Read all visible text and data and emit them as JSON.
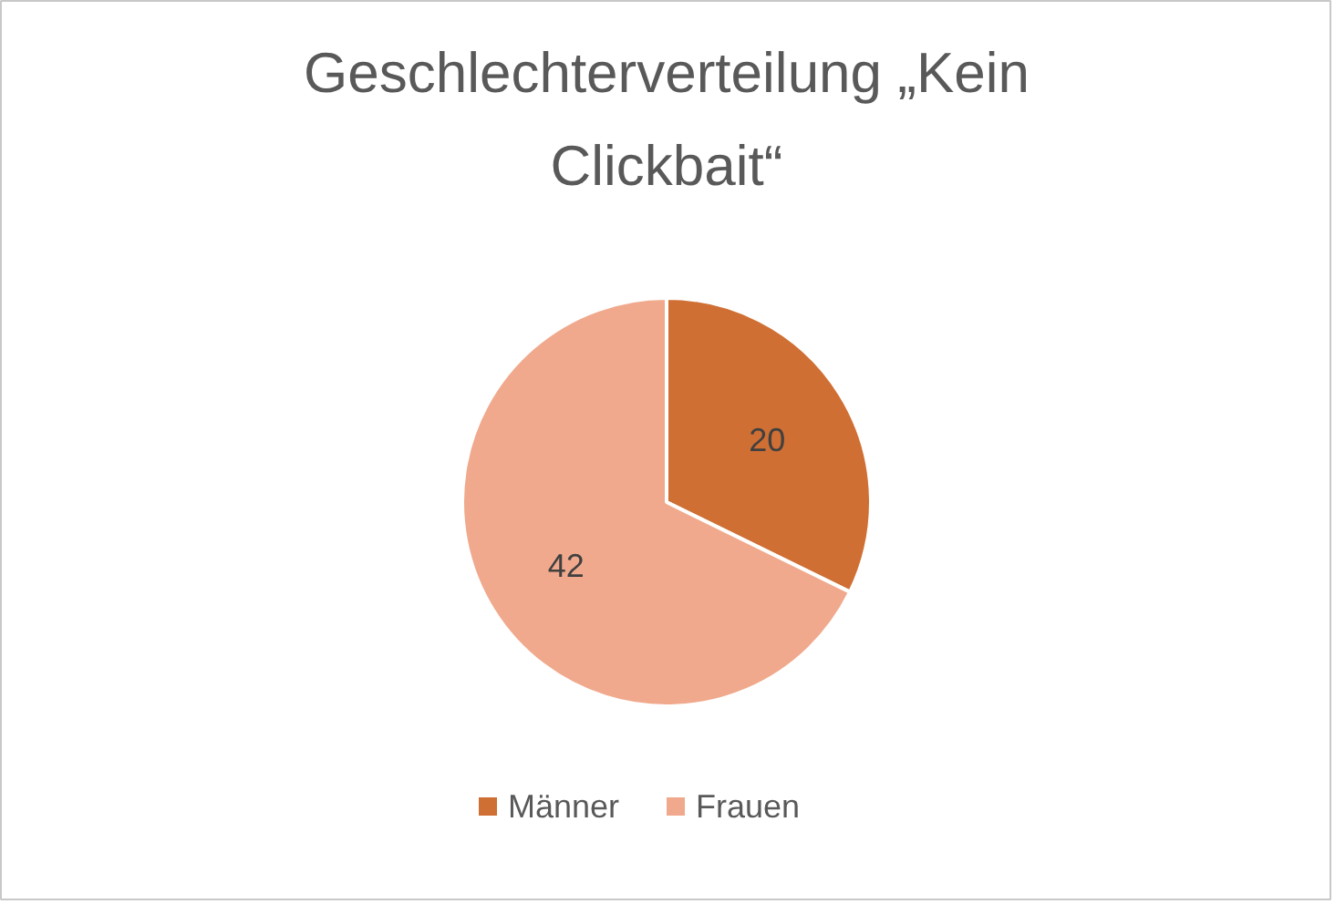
{
  "chart_data": {
    "type": "pie",
    "title": "Geschlechterverteilung „Kein Clickbait“",
    "categories": [
      "Männer",
      "Frauen"
    ],
    "values": [
      20,
      42
    ],
    "colors": [
      "#d06f33",
      "#f0a98c"
    ],
    "data_labels": true,
    "legend": "bottom"
  }
}
